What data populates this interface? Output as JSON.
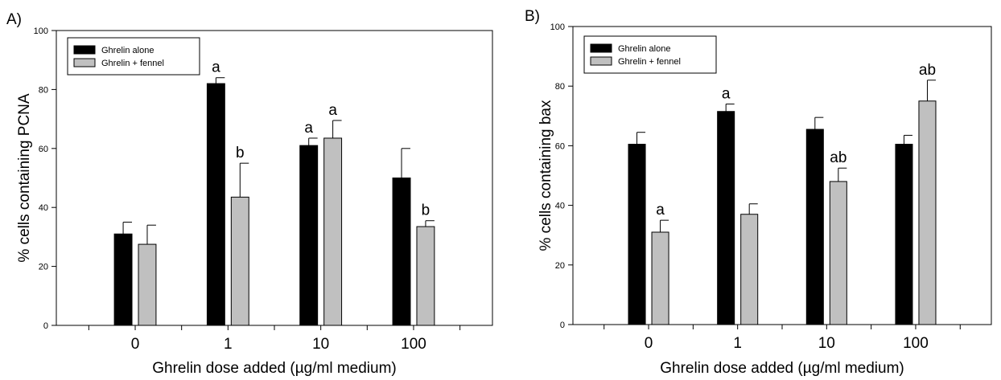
{
  "colors": {
    "series_alone": "#000000",
    "series_fennel": "#c0c0c0",
    "axis": "#000000"
  },
  "chart_data": [
    {
      "type": "bar",
      "panel_label": "A)",
      "xlabel": "Ghrelin dose added (µg/ml medium)",
      "ylabel": "% cells containing PCNA",
      "ylim": [
        0,
        100
      ],
      "yticks": [
        0,
        20,
        40,
        60,
        80,
        100
      ],
      "categories": [
        "0",
        "1",
        "10",
        "100"
      ],
      "legend_position": "top-left",
      "grid": false,
      "series": [
        {
          "name": "Ghrelin alone",
          "values": [
            31,
            82,
            61,
            50
          ],
          "errors": [
            4,
            2,
            2.5,
            10
          ],
          "labels": [
            "",
            "a",
            "a",
            ""
          ]
        },
        {
          "name": "Ghrelin + fennel",
          "values": [
            27.5,
            43.5,
            63.5,
            33.5
          ],
          "errors": [
            6.5,
            11.5,
            6,
            2
          ],
          "labels": [
            "",
            "b",
            "a",
            "b"
          ]
        }
      ]
    },
    {
      "type": "bar",
      "panel_label": "B)",
      "xlabel": "Ghrelin dose added (µg/ml medium)",
      "ylabel": "% cells containing bax",
      "ylim": [
        0,
        100
      ],
      "yticks": [
        0,
        20,
        40,
        60,
        80,
        100
      ],
      "categories": [
        "0",
        "1",
        "10",
        "100"
      ],
      "legend_position": "top-left",
      "grid": false,
      "series": [
        {
          "name": "Ghrelin alone",
          "values": [
            60.5,
            71.5,
            65.5,
            60.5
          ],
          "errors": [
            4,
            2.5,
            4,
            3
          ],
          "labels": [
            "",
            "a",
            "",
            ""
          ]
        },
        {
          "name": "Ghrelin + fennel",
          "values": [
            31,
            37,
            48,
            75
          ],
          "errors": [
            4,
            3.5,
            4.5,
            7
          ],
          "labels": [
            "a",
            "",
            "ab",
            "ab"
          ]
        }
      ]
    }
  ]
}
